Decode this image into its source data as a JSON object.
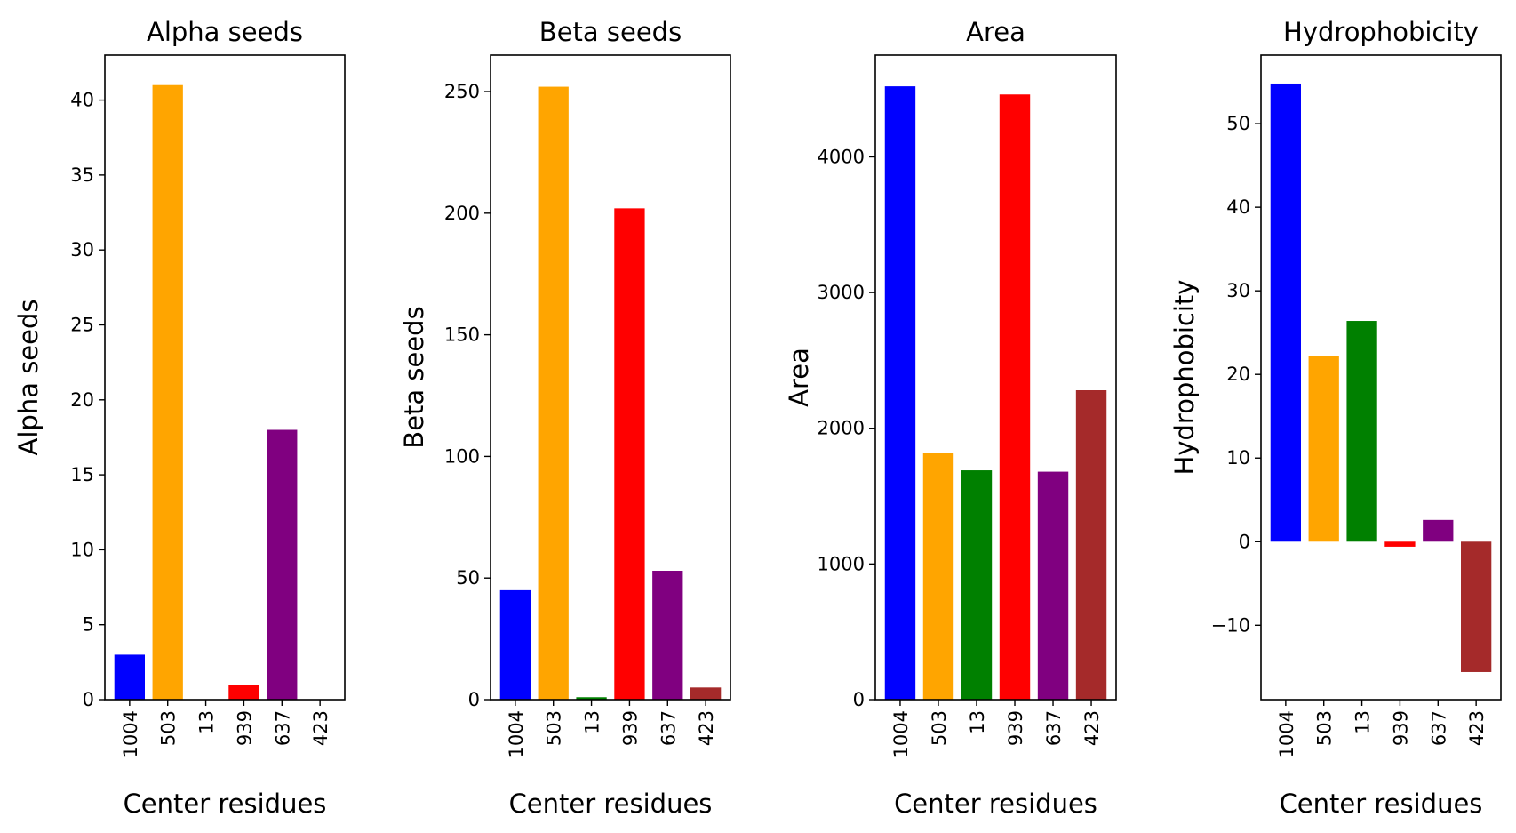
{
  "figure": {
    "xlabel": "Center residues"
  },
  "chart_data": [
    {
      "type": "bar",
      "title": "Alpha seeds",
      "xlabel": "Center residues",
      "ylabel": "Alpha seeds",
      "categories": [
        "1004",
        "503",
        "13",
        "939",
        "637",
        "423"
      ],
      "values": [
        3,
        41,
        0,
        1,
        18,
        0
      ],
      "colors": [
        "#0000ff",
        "#ffa500",
        "#008000",
        "#ff0000",
        "#800080",
        "#a52a2a"
      ],
      "ylim": [
        0,
        43
      ],
      "yticks": [
        0,
        5,
        10,
        15,
        20,
        25,
        30,
        35,
        40
      ],
      "grid": false
    },
    {
      "type": "bar",
      "title": "Beta seeds",
      "xlabel": "Center residues",
      "ylabel": "Beta seeds",
      "categories": [
        "1004",
        "503",
        "13",
        "939",
        "637",
        "423"
      ],
      "values": [
        45,
        252,
        1,
        202,
        53,
        5
      ],
      "colors": [
        "#0000ff",
        "#ffa500",
        "#008000",
        "#ff0000",
        "#800080",
        "#a52a2a"
      ],
      "ylim": [
        0,
        265
      ],
      "yticks": [
        0,
        50,
        100,
        150,
        200,
        250
      ],
      "grid": false
    },
    {
      "type": "bar",
      "title": "Area",
      "xlabel": "Center residues",
      "ylabel": "Area",
      "categories": [
        "1004",
        "503",
        "13",
        "939",
        "637",
        "423"
      ],
      "values": [
        4520,
        1820,
        1690,
        4460,
        1680,
        2280
      ],
      "colors": [
        "#0000ff",
        "#ffa500",
        "#008000",
        "#ff0000",
        "#800080",
        "#a52a2a"
      ],
      "ylim": [
        0,
        4750
      ],
      "yticks": [
        0,
        1000,
        2000,
        3000,
        4000
      ],
      "grid": false
    },
    {
      "type": "bar",
      "title": "Hydrophobicity",
      "xlabel": "Center residues",
      "ylabel": "Hydrophobicity",
      "categories": [
        "1004",
        "503",
        "13",
        "939",
        "637",
        "423"
      ],
      "values": [
        54.8,
        22.2,
        26.4,
        -0.6,
        2.6,
        -15.6
      ],
      "colors": [
        "#0000ff",
        "#ffa500",
        "#008000",
        "#ff0000",
        "#800080",
        "#a52a2a"
      ],
      "ylim": [
        -18.9,
        58.2
      ],
      "yticks": [
        -10,
        0,
        10,
        20,
        30,
        40,
        50
      ],
      "grid": false
    }
  ]
}
